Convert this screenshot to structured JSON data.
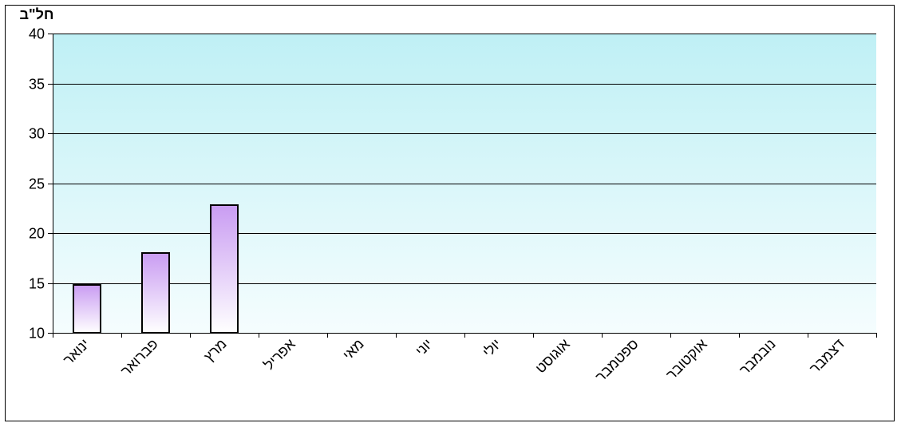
{
  "chart_data": {
    "type": "bar",
    "title": "",
    "ylabel": "חל\"ב",
    "xlabel": "",
    "categories": [
      "ינואר",
      "פברואר",
      "מרץ",
      "אפריל",
      "מאי",
      "יוני",
      "יולי",
      "אוגוסט",
      "ספטמבר",
      "אוקטובר",
      "נובמבר",
      "דצמבר"
    ],
    "values": [
      14.8,
      18.0,
      22.8,
      null,
      null,
      null,
      null,
      null,
      null,
      null,
      null,
      null
    ],
    "ylim": [
      10,
      40
    ],
    "yticks": [
      "10",
      "15",
      "20",
      "25",
      "30",
      "35",
      "40"
    ],
    "grid": true,
    "legend": "none",
    "colors": {
      "bar_top": "#c99cf2",
      "bar_bottom": "#ffffff",
      "bar_edge": "#000000",
      "plot_bg_top": "#bff0f5",
      "plot_bg_bottom": "#f5fdfe",
      "gridline": "#000000"
    }
  }
}
